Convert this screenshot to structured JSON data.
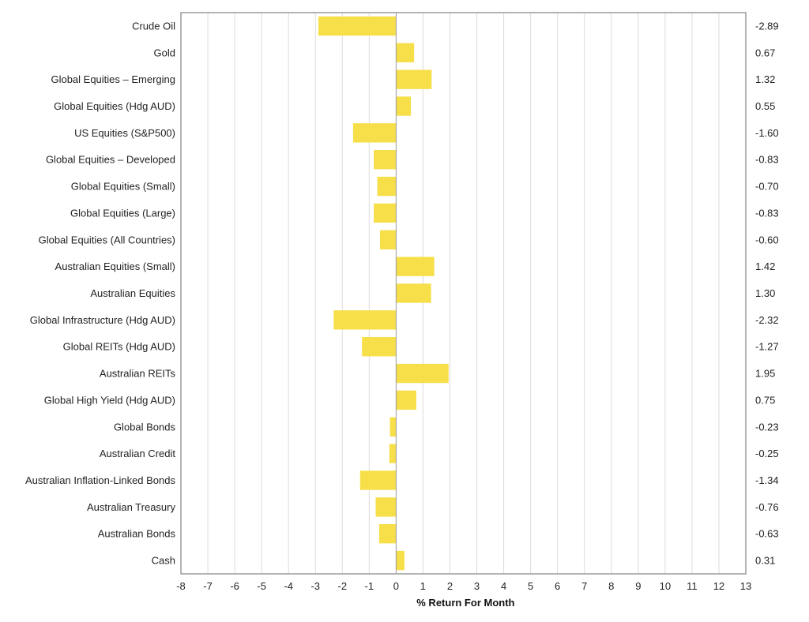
{
  "chart_data": {
    "type": "bar",
    "orientation": "horizontal",
    "title": "",
    "xlabel": "% Return For Month",
    "ylabel": "",
    "xlim": [
      -8,
      13
    ],
    "x_ticks": [
      -8,
      -7,
      -6,
      -5,
      -4,
      -3,
      -2,
      -1,
      0,
      1,
      2,
      3,
      4,
      5,
      6,
      7,
      8,
      9,
      10,
      11,
      12,
      13
    ],
    "grid": "vertical",
    "bar_color": "#f7df4a",
    "categories": [
      "Crude Oil",
      "Gold",
      "Global Equities – Emerging",
      "Global Equities (Hdg AUD)",
      "US Equities (S&P500)",
      "Global Equities – Developed",
      "Global Equities (Small)",
      "Global Equities (Large)",
      "Global Equities (All Countries)",
      "Australian Equities (Small)",
      "Australian Equities",
      "Global Infrastructure (Hdg AUD)",
      "Global REITs (Hdg AUD)",
      "Australian REITs",
      "Global High Yield (Hdg AUD)",
      "Global Bonds",
      "Australian Credit",
      "Australian Inflation-Linked Bonds",
      "Australian Treasury",
      "Australian Bonds",
      "Cash"
    ],
    "values": [
      -2.89,
      0.67,
      1.32,
      0.55,
      -1.6,
      -0.83,
      -0.7,
      -0.83,
      -0.6,
      1.42,
      1.3,
      -2.32,
      -1.27,
      1.95,
      0.75,
      -0.23,
      -0.25,
      -1.34,
      -0.76,
      -0.63,
      0.31
    ],
    "value_labels": [
      "-2.89",
      "0.67",
      "1.32",
      "0.55",
      "-1.60",
      "-0.83",
      "-0.70",
      "-0.83",
      "-0.60",
      "1.42",
      "1.30",
      "-2.32",
      "-1.27",
      "1.95",
      "0.75",
      "-0.23",
      "-0.25",
      "-1.34",
      "-0.76",
      "-0.63",
      "0.31"
    ],
    "value_label_position": "right-of-plot"
  }
}
